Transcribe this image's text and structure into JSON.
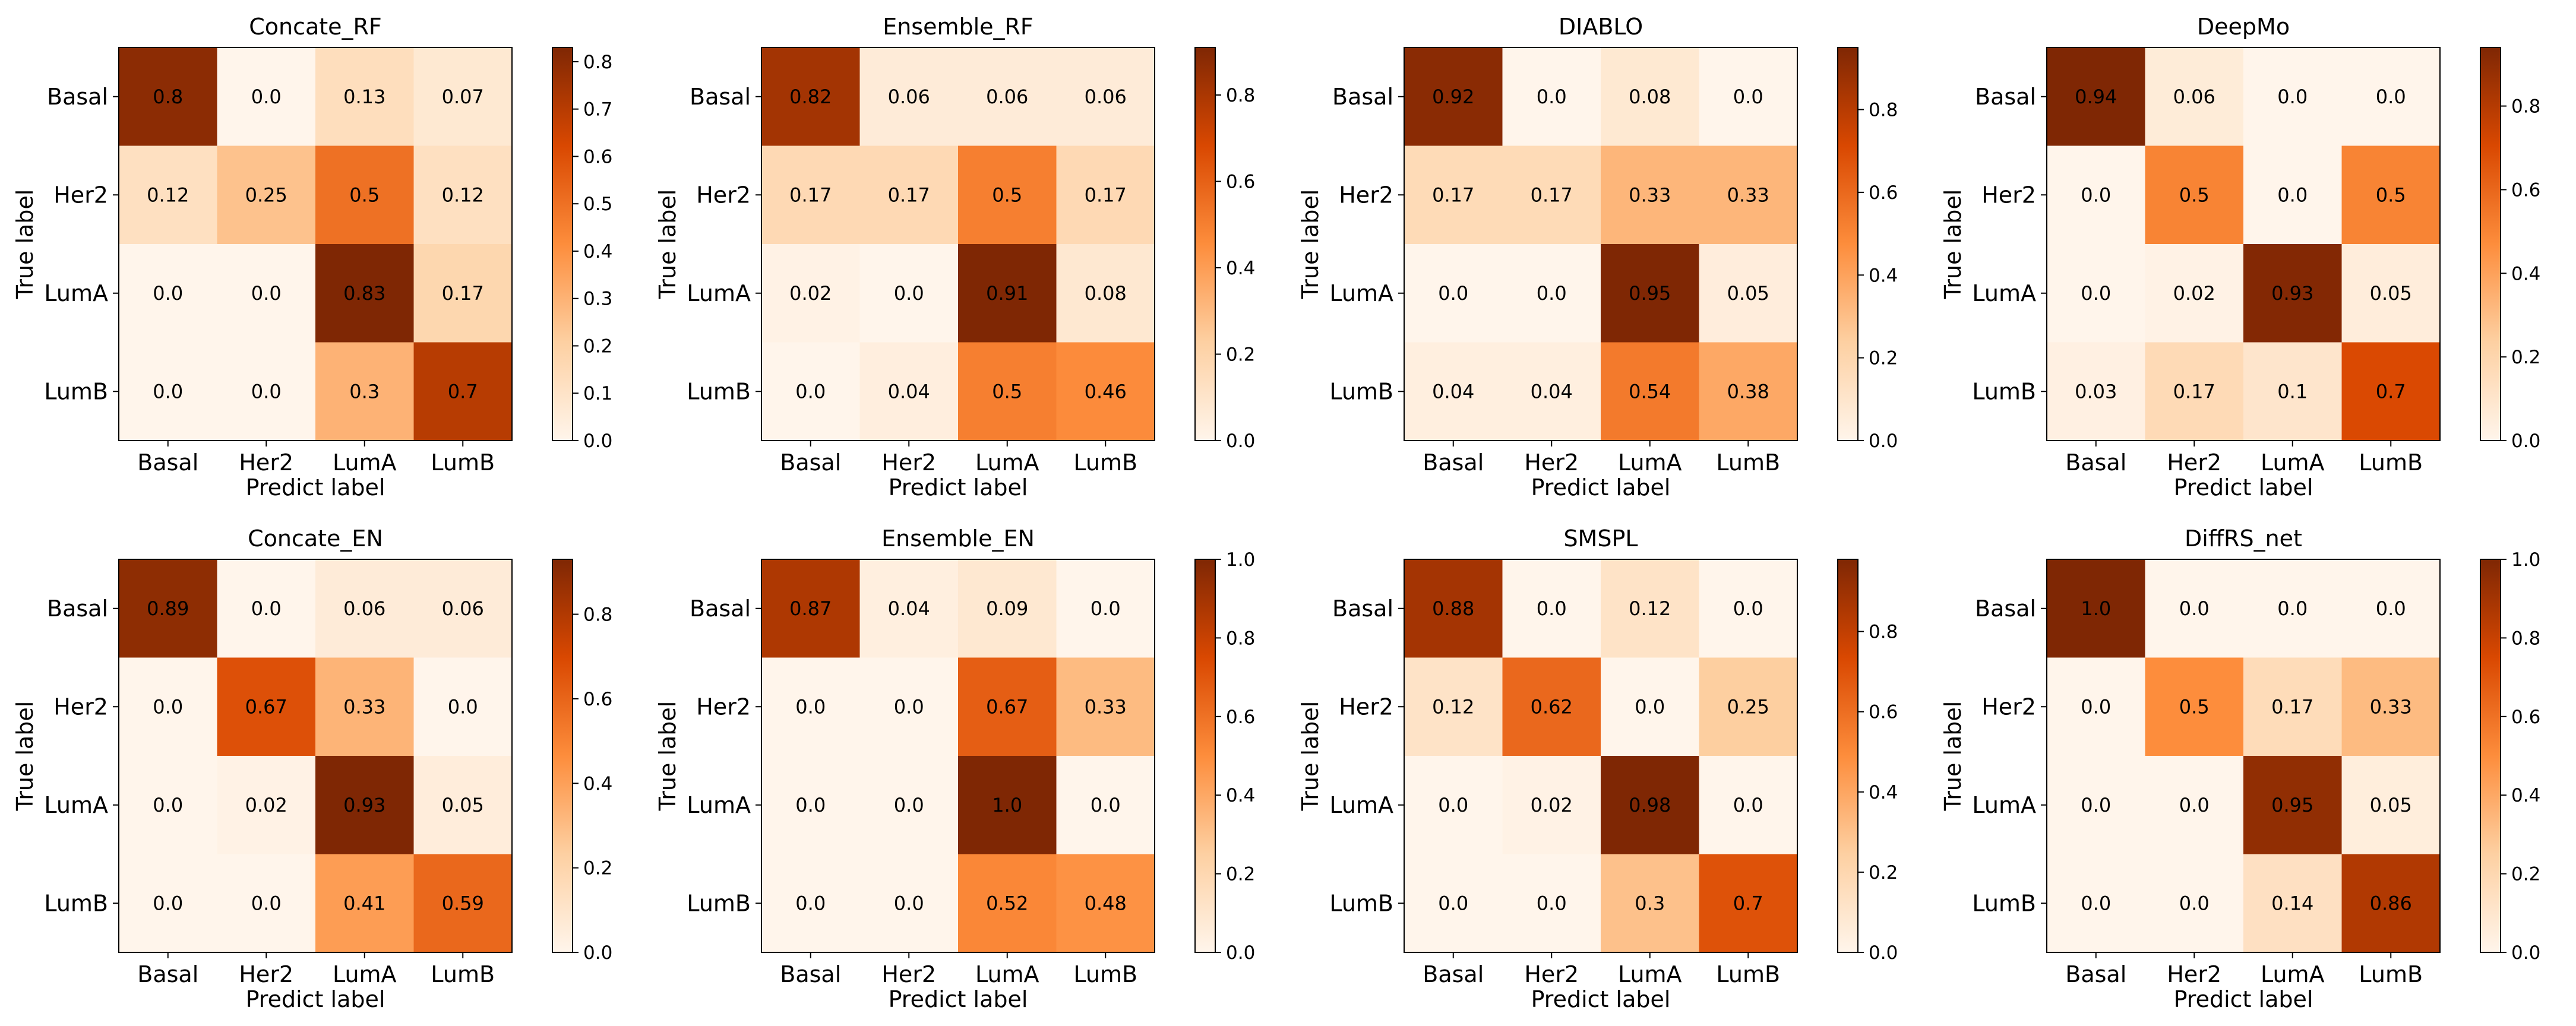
{
  "figure": {
    "shared": {
      "xlabel": "Predict label",
      "ylabel": "True label",
      "labels": [
        "Basal",
        "Her2",
        "LumA",
        "LumB"
      ],
      "colormap": [
        "#fff5eb",
        "#fdd0a2",
        "#fd8d3c",
        "#d94801",
        "#7f2704"
      ]
    }
  },
  "chart_data": [
    {
      "type": "heatmap",
      "title": "Concate_RF",
      "xlabel": "Predict label",
      "ylabel": "True label",
      "categories": [
        "Basal",
        "Her2",
        "LumA",
        "LumB"
      ],
      "values": [
        [
          0.8,
          0.0,
          0.13,
          0.07
        ],
        [
          0.12,
          0.25,
          0.5,
          0.12
        ],
        [
          0.0,
          0.0,
          0.83,
          0.17
        ],
        [
          0.0,
          0.0,
          0.3,
          0.7
        ]
      ],
      "colorbar_range": [
        0.0,
        0.83
      ],
      "colorbar_ticks": [
        0.0,
        0.1,
        0.2,
        0.3,
        0.4,
        0.5,
        0.6,
        0.7,
        0.8
      ]
    },
    {
      "type": "heatmap",
      "title": "Ensemble_RF",
      "xlabel": "Predict label",
      "ylabel": "True label",
      "categories": [
        "Basal",
        "Her2",
        "LumA",
        "LumB"
      ],
      "values": [
        [
          0.82,
          0.06,
          0.06,
          0.06
        ],
        [
          0.17,
          0.17,
          0.5,
          0.17
        ],
        [
          0.02,
          0.0,
          0.91,
          0.08
        ],
        [
          0.0,
          0.04,
          0.5,
          0.46
        ]
      ],
      "colorbar_range": [
        0.0,
        0.91
      ],
      "colorbar_ticks": [
        0.0,
        0.2,
        0.4,
        0.6,
        0.8
      ]
    },
    {
      "type": "heatmap",
      "title": "DIABLO",
      "xlabel": "Predict label",
      "ylabel": "True label",
      "categories": [
        "Basal",
        "Her2",
        "LumA",
        "LumB"
      ],
      "values": [
        [
          0.92,
          0.0,
          0.08,
          0.0
        ],
        [
          0.17,
          0.17,
          0.33,
          0.33
        ],
        [
          0.0,
          0.0,
          0.95,
          0.05
        ],
        [
          0.04,
          0.04,
          0.54,
          0.38
        ]
      ],
      "colorbar_range": [
        0.0,
        0.95
      ],
      "colorbar_ticks": [
        0.0,
        0.2,
        0.4,
        0.6,
        0.8
      ]
    },
    {
      "type": "heatmap",
      "title": "DeepMo",
      "xlabel": "Predict label",
      "ylabel": "True label",
      "categories": [
        "Basal",
        "Her2",
        "LumA",
        "LumB"
      ],
      "values": [
        [
          0.94,
          0.06,
          0.0,
          0.0
        ],
        [
          0.0,
          0.5,
          0.0,
          0.5
        ],
        [
          0.0,
          0.02,
          0.93,
          0.05
        ],
        [
          0.03,
          0.17,
          0.1,
          0.7
        ]
      ],
      "colorbar_range": [
        0.0,
        0.94
      ],
      "colorbar_ticks": [
        0.0,
        0.2,
        0.4,
        0.6,
        0.8
      ]
    },
    {
      "type": "heatmap",
      "title": "Concate_EN",
      "xlabel": "Predict label",
      "ylabel": "True label",
      "categories": [
        "Basal",
        "Her2",
        "LumA",
        "LumB"
      ],
      "values": [
        [
          0.89,
          0.0,
          0.06,
          0.06
        ],
        [
          0.0,
          0.67,
          0.33,
          0.0
        ],
        [
          0.0,
          0.02,
          0.93,
          0.05
        ],
        [
          0.0,
          0.0,
          0.41,
          0.59
        ]
      ],
      "colorbar_range": [
        0.0,
        0.93
      ],
      "colorbar_ticks": [
        0.0,
        0.2,
        0.4,
        0.6,
        0.8
      ]
    },
    {
      "type": "heatmap",
      "title": "Ensemble_EN",
      "xlabel": "Predict label",
      "ylabel": "True label",
      "categories": [
        "Basal",
        "Her2",
        "LumA",
        "LumB"
      ],
      "values": [
        [
          0.87,
          0.04,
          0.09,
          0.0
        ],
        [
          0.0,
          0.0,
          0.67,
          0.33
        ],
        [
          0.0,
          0.0,
          1.0,
          0.0
        ],
        [
          0.0,
          0.0,
          0.52,
          0.48
        ]
      ],
      "colorbar_range": [
        0.0,
        1.0
      ],
      "colorbar_ticks": [
        0.0,
        0.2,
        0.4,
        0.6,
        0.8,
        1.0
      ]
    },
    {
      "type": "heatmap",
      "title": "SMSPL",
      "xlabel": "Predict label",
      "ylabel": "True label",
      "categories": [
        "Basal",
        "Her2",
        "LumA",
        "LumB"
      ],
      "values": [
        [
          0.88,
          0.0,
          0.12,
          0.0
        ],
        [
          0.12,
          0.62,
          0.0,
          0.25
        ],
        [
          0.0,
          0.02,
          0.98,
          0.0
        ],
        [
          0.0,
          0.0,
          0.3,
          0.7
        ]
      ],
      "colorbar_range": [
        0.0,
        0.98
      ],
      "colorbar_ticks": [
        0.0,
        0.2,
        0.4,
        0.6,
        0.8
      ]
    },
    {
      "type": "heatmap",
      "title": "DiffRS_net",
      "xlabel": "Predict label",
      "ylabel": "True label",
      "categories": [
        "Basal",
        "Her2",
        "LumA",
        "LumB"
      ],
      "values": [
        [
          1.0,
          0.0,
          0.0,
          0.0
        ],
        [
          0.0,
          0.5,
          0.17,
          0.33
        ],
        [
          0.0,
          0.0,
          0.95,
          0.05
        ],
        [
          0.0,
          0.0,
          0.14,
          0.86
        ]
      ],
      "colorbar_range": [
        0.0,
        1.0
      ],
      "colorbar_ticks": [
        0.0,
        0.2,
        0.4,
        0.6,
        0.8,
        1.0
      ]
    }
  ]
}
